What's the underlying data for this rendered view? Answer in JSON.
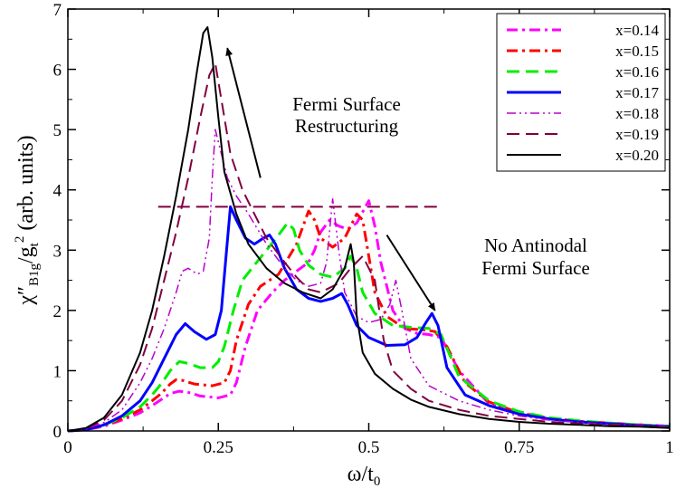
{
  "chart_data": {
    "type": "line",
    "xlabel": "ω/t",
    "xlabel_sub": "0",
    "ylabel_main": "χ″",
    "ylabel_sub": "B1g",
    "ylabel_mid": "/g",
    "ylabel_sub2": "t",
    "ylabel_sup": "2",
    "ylabel_units": " (arb. units)",
    "xlim": [
      0,
      1
    ],
    "ylim": [
      0,
      7
    ],
    "x_ticks": [
      0,
      0.25,
      0.5,
      0.75,
      1
    ],
    "x_tick_labels": [
      "0",
      "0.25",
      "0.5",
      "0.75",
      "1"
    ],
    "y_ticks": [
      0,
      1,
      2,
      3,
      4,
      5,
      6,
      7
    ],
    "y_tick_labels": [
      "0",
      "1",
      "2",
      "3",
      "4",
      "5",
      "6",
      "7"
    ],
    "legend_position": "top-right",
    "series": [
      {
        "name": "x=0.14",
        "color": "#ff00ff",
        "style": "dashdot",
        "width": 3,
        "points": [
          [
            0,
            0
          ],
          [
            0.03,
            0.02
          ],
          [
            0.06,
            0.08
          ],
          [
            0.09,
            0.18
          ],
          [
            0.12,
            0.3
          ],
          [
            0.14,
            0.42
          ],
          [
            0.155,
            0.52
          ],
          [
            0.17,
            0.62
          ],
          [
            0.185,
            0.66
          ],
          [
            0.2,
            0.64
          ],
          [
            0.22,
            0.58
          ],
          [
            0.25,
            0.55
          ],
          [
            0.27,
            0.6
          ],
          [
            0.28,
            0.8
          ],
          [
            0.295,
            1.4
          ],
          [
            0.315,
            2.0
          ],
          [
            0.34,
            2.3
          ],
          [
            0.36,
            2.5
          ],
          [
            0.38,
            2.65
          ],
          [
            0.4,
            2.8
          ],
          [
            0.41,
            3.0
          ],
          [
            0.42,
            3.3
          ],
          [
            0.435,
            3.5
          ],
          [
            0.45,
            3.4
          ],
          [
            0.465,
            3.35
          ],
          [
            0.48,
            3.45
          ],
          [
            0.5,
            3.82
          ],
          [
            0.51,
            3.4
          ],
          [
            0.52,
            2.8
          ],
          [
            0.54,
            2.0
          ],
          [
            0.56,
            1.7
          ],
          [
            0.58,
            1.62
          ],
          [
            0.6,
            1.6
          ],
          [
            0.62,
            1.55
          ],
          [
            0.65,
            1.0
          ],
          [
            0.7,
            0.45
          ],
          [
            0.75,
            0.28
          ],
          [
            0.8,
            0.2
          ],
          [
            0.85,
            0.16
          ],
          [
            0.9,
            0.13
          ],
          [
            0.95,
            0.1
          ],
          [
            1,
            0.08
          ]
        ]
      },
      {
        "name": "x=0.15",
        "color": "#ff0000",
        "style": "dashdot",
        "width": 3,
        "points": [
          [
            0,
            0
          ],
          [
            0.03,
            0.02
          ],
          [
            0.06,
            0.09
          ],
          [
            0.09,
            0.2
          ],
          [
            0.12,
            0.35
          ],
          [
            0.14,
            0.5
          ],
          [
            0.155,
            0.62
          ],
          [
            0.17,
            0.78
          ],
          [
            0.18,
            0.85
          ],
          [
            0.19,
            0.84
          ],
          [
            0.21,
            0.78
          ],
          [
            0.24,
            0.75
          ],
          [
            0.26,
            0.8
          ],
          [
            0.27,
            1.0
          ],
          [
            0.28,
            1.5
          ],
          [
            0.3,
            2.1
          ],
          [
            0.32,
            2.4
          ],
          [
            0.35,
            2.6
          ],
          [
            0.38,
            3.1
          ],
          [
            0.4,
            3.65
          ],
          [
            0.41,
            3.5
          ],
          [
            0.42,
            3.2
          ],
          [
            0.44,
            3.05
          ],
          [
            0.46,
            3.2
          ],
          [
            0.48,
            3.6
          ],
          [
            0.49,
            3.5
          ],
          [
            0.5,
            2.9
          ],
          [
            0.51,
            2.3
          ],
          [
            0.53,
            1.9
          ],
          [
            0.56,
            1.7
          ],
          [
            0.59,
            1.68
          ],
          [
            0.61,
            1.65
          ],
          [
            0.63,
            1.4
          ],
          [
            0.66,
            0.8
          ],
          [
            0.7,
            0.48
          ],
          [
            0.75,
            0.3
          ],
          [
            0.8,
            0.21
          ],
          [
            0.85,
            0.16
          ],
          [
            0.9,
            0.13
          ],
          [
            0.95,
            0.1
          ],
          [
            1,
            0.08
          ]
        ]
      },
      {
        "name": "x=0.16",
        "color": "#00ee00",
        "style": "dashed",
        "width": 3,
        "points": [
          [
            0,
            0
          ],
          [
            0.03,
            0.02
          ],
          [
            0.06,
            0.1
          ],
          [
            0.09,
            0.22
          ],
          [
            0.12,
            0.4
          ],
          [
            0.14,
            0.6
          ],
          [
            0.155,
            0.78
          ],
          [
            0.17,
            1.0
          ],
          [
            0.185,
            1.15
          ],
          [
            0.2,
            1.12
          ],
          [
            0.22,
            1.05
          ],
          [
            0.24,
            1.05
          ],
          [
            0.25,
            1.15
          ],
          [
            0.26,
            1.4
          ],
          [
            0.275,
            2.0
          ],
          [
            0.29,
            2.5
          ],
          [
            0.31,
            2.75
          ],
          [
            0.33,
            3.0
          ],
          [
            0.35,
            3.25
          ],
          [
            0.365,
            3.45
          ],
          [
            0.375,
            3.35
          ],
          [
            0.385,
            3.0
          ],
          [
            0.4,
            2.75
          ],
          [
            0.42,
            2.6
          ],
          [
            0.44,
            2.55
          ],
          [
            0.46,
            2.7
          ],
          [
            0.47,
            2.9
          ],
          [
            0.48,
            2.7
          ],
          [
            0.49,
            2.3
          ],
          [
            0.51,
            1.95
          ],
          [
            0.54,
            1.75
          ],
          [
            0.57,
            1.72
          ],
          [
            0.6,
            1.7
          ],
          [
            0.62,
            1.6
          ],
          [
            0.65,
            0.9
          ],
          [
            0.7,
            0.5
          ],
          [
            0.75,
            0.32
          ],
          [
            0.8,
            0.22
          ],
          [
            0.85,
            0.17
          ],
          [
            0.9,
            0.13
          ],
          [
            0.95,
            0.1
          ],
          [
            1,
            0.08
          ]
        ]
      },
      {
        "name": "x=0.17",
        "color": "#0000ff",
        "style": "solid",
        "width": 3,
        "points": [
          [
            0,
            0
          ],
          [
            0.03,
            0.02
          ],
          [
            0.06,
            0.1
          ],
          [
            0.09,
            0.25
          ],
          [
            0.12,
            0.5
          ],
          [
            0.14,
            0.8
          ],
          [
            0.16,
            1.2
          ],
          [
            0.18,
            1.6
          ],
          [
            0.195,
            1.78
          ],
          [
            0.21,
            1.65
          ],
          [
            0.23,
            1.52
          ],
          [
            0.245,
            1.6
          ],
          [
            0.255,
            2.0
          ],
          [
            0.262,
            2.8
          ],
          [
            0.27,
            3.72
          ],
          [
            0.28,
            3.5
          ],
          [
            0.295,
            3.2
          ],
          [
            0.31,
            3.1
          ],
          [
            0.325,
            3.2
          ],
          [
            0.335,
            3.25
          ],
          [
            0.345,
            3.1
          ],
          [
            0.36,
            2.7
          ],
          [
            0.38,
            2.35
          ],
          [
            0.4,
            2.2
          ],
          [
            0.42,
            2.15
          ],
          [
            0.44,
            2.2
          ],
          [
            0.455,
            2.28
          ],
          [
            0.465,
            2.1
          ],
          [
            0.48,
            1.75
          ],
          [
            0.5,
            1.55
          ],
          [
            0.53,
            1.42
          ],
          [
            0.56,
            1.43
          ],
          [
            0.58,
            1.55
          ],
          [
            0.595,
            1.8
          ],
          [
            0.605,
            1.95
          ],
          [
            0.615,
            1.75
          ],
          [
            0.63,
            1.05
          ],
          [
            0.66,
            0.6
          ],
          [
            0.7,
            0.42
          ],
          [
            0.75,
            0.28
          ],
          [
            0.8,
            0.2
          ],
          [
            0.85,
            0.15
          ],
          [
            0.9,
            0.12
          ],
          [
            0.95,
            0.09
          ],
          [
            1,
            0.07
          ]
        ]
      },
      {
        "name": "x=0.18",
        "color": "#bb00cc",
        "style": "dashdotdot",
        "width": 1.5,
        "points": [
          [
            0,
            0
          ],
          [
            0.03,
            0.03
          ],
          [
            0.06,
            0.14
          ],
          [
            0.09,
            0.35
          ],
          [
            0.12,
            0.8
          ],
          [
            0.14,
            1.2
          ],
          [
            0.16,
            1.7
          ],
          [
            0.18,
            2.3
          ],
          [
            0.19,
            2.65
          ],
          [
            0.2,
            2.7
          ],
          [
            0.215,
            2.6
          ],
          [
            0.225,
            2.65
          ],
          [
            0.235,
            3.2
          ],
          [
            0.24,
            4.2
          ],
          [
            0.245,
            5.0
          ],
          [
            0.255,
            4.6
          ],
          [
            0.265,
            4.2
          ],
          [
            0.28,
            3.9
          ],
          [
            0.3,
            3.6
          ],
          [
            0.33,
            3.1
          ],
          [
            0.36,
            2.7
          ],
          [
            0.38,
            2.5
          ],
          [
            0.4,
            2.4
          ],
          [
            0.42,
            2.45
          ],
          [
            0.43,
            2.8
          ],
          [
            0.44,
            3.85
          ],
          [
            0.45,
            3.0
          ],
          [
            0.46,
            2.3
          ],
          [
            0.48,
            1.9
          ],
          [
            0.5,
            1.8
          ],
          [
            0.52,
            1.85
          ],
          [
            0.535,
            2.1
          ],
          [
            0.545,
            2.5
          ],
          [
            0.555,
            2.0
          ],
          [
            0.57,
            1.2
          ],
          [
            0.6,
            0.75
          ],
          [
            0.65,
            0.5
          ],
          [
            0.7,
            0.35
          ],
          [
            0.75,
            0.25
          ],
          [
            0.8,
            0.18
          ],
          [
            0.85,
            0.14
          ],
          [
            0.9,
            0.11
          ],
          [
            0.95,
            0.09
          ],
          [
            1,
            0.07
          ]
        ]
      },
      {
        "name": "x=0.19",
        "color": "#800040",
        "style": "dashed",
        "width": 2,
        "points": [
          [
            0,
            0
          ],
          [
            0.03,
            0.04
          ],
          [
            0.06,
            0.18
          ],
          [
            0.09,
            0.5
          ],
          [
            0.12,
            1.1
          ],
          [
            0.14,
            1.7
          ],
          [
            0.16,
            2.5
          ],
          [
            0.18,
            3.3
          ],
          [
            0.2,
            4.2
          ],
          [
            0.22,
            5.2
          ],
          [
            0.235,
            5.9
          ],
          [
            0.245,
            6.1
          ],
          [
            0.255,
            5.5
          ],
          [
            0.27,
            4.6
          ],
          [
            0.29,
            4.0
          ],
          [
            0.31,
            3.6
          ],
          [
            0.33,
            3.2
          ],
          [
            0.36,
            2.8
          ],
          [
            0.38,
            2.55
          ],
          [
            0.4,
            2.35
          ],
          [
            0.42,
            2.3
          ],
          [
            0.45,
            2.45
          ],
          [
            0.47,
            2.7
          ],
          [
            0.49,
            2.9
          ],
          [
            0.51,
            2.5
          ],
          [
            0.525,
            1.5
          ],
          [
            0.54,
            1.0
          ],
          [
            0.57,
            0.7
          ],
          [
            0.6,
            0.5
          ],
          [
            0.65,
            0.35
          ],
          [
            0.7,
            0.25
          ],
          [
            0.75,
            0.2
          ],
          [
            0.8,
            0.15
          ],
          [
            0.85,
            0.12
          ],
          [
            0.9,
            0.1
          ],
          [
            0.95,
            0.08
          ],
          [
            1,
            0.06
          ]
        ]
      },
      {
        "name": "x=0.20",
        "color": "#000000",
        "style": "solid",
        "width": 2,
        "points": [
          [
            0,
            0
          ],
          [
            0.03,
            0.05
          ],
          [
            0.06,
            0.22
          ],
          [
            0.09,
            0.6
          ],
          [
            0.12,
            1.3
          ],
          [
            0.14,
            2.0
          ],
          [
            0.16,
            2.9
          ],
          [
            0.18,
            3.9
          ],
          [
            0.2,
            5.0
          ],
          [
            0.215,
            6.0
          ],
          [
            0.225,
            6.6
          ],
          [
            0.232,
            6.7
          ],
          [
            0.24,
            6.2
          ],
          [
            0.25,
            5.2
          ],
          [
            0.26,
            4.3
          ],
          [
            0.28,
            3.6
          ],
          [
            0.3,
            3.1
          ],
          [
            0.33,
            2.7
          ],
          [
            0.36,
            2.45
          ],
          [
            0.39,
            2.3
          ],
          [
            0.42,
            2.2
          ],
          [
            0.44,
            2.35
          ],
          [
            0.46,
            2.7
          ],
          [
            0.47,
            3.1
          ],
          [
            0.475,
            2.8
          ],
          [
            0.48,
            1.9
          ],
          [
            0.49,
            1.3
          ],
          [
            0.51,
            0.95
          ],
          [
            0.54,
            0.7
          ],
          [
            0.57,
            0.52
          ],
          [
            0.6,
            0.4
          ],
          [
            0.65,
            0.28
          ],
          [
            0.7,
            0.2
          ],
          [
            0.75,
            0.15
          ],
          [
            0.8,
            0.12
          ],
          [
            0.85,
            0.1
          ],
          [
            0.9,
            0.08
          ],
          [
            0.95,
            0.07
          ],
          [
            1,
            0.05
          ]
        ]
      }
    ],
    "reference_line": {
      "y": 3.72,
      "x_from": 0.15,
      "x_to": 0.62,
      "color": "#800040",
      "style": "dashed"
    },
    "annotations": [
      {
        "lines": [
          "Fermi Surface",
          "Restructuring"
        ]
      },
      {
        "lines": [
          "No Antinodal",
          "Fermi Surface"
        ]
      }
    ],
    "arrows": [
      {
        "from": [
          0.32,
          4.2
        ],
        "to": [
          0.265,
          6.35
        ]
      },
      {
        "from": [
          0.53,
          3.25
        ],
        "to": [
          0.61,
          2.0
        ]
      }
    ]
  }
}
